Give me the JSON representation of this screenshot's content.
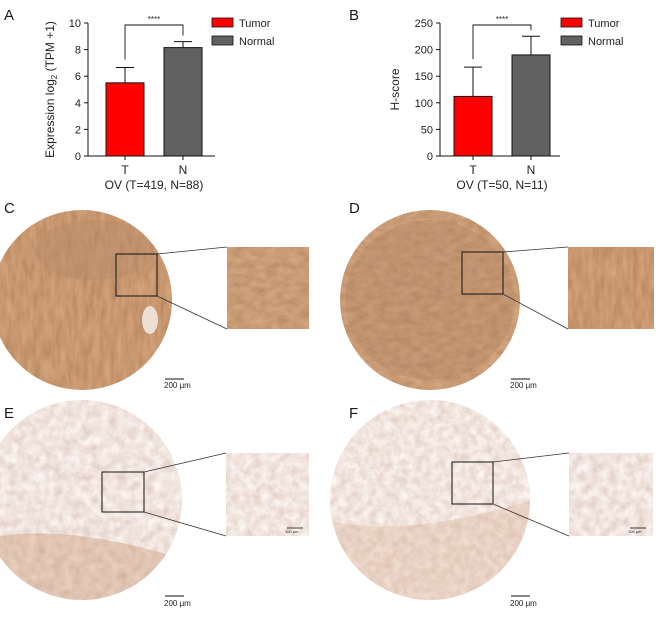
{
  "panels": {
    "a": "A",
    "b": "B",
    "c": "C",
    "d": "D",
    "e": "E",
    "f": "F"
  },
  "chart_data": [
    {
      "type": "bar",
      "categories": [
        "T",
        "N"
      ],
      "values": [
        5.5,
        8.15
      ],
      "errors": [
        1.15,
        0.45
      ],
      "colors": [
        "#ff0000",
        "#616161"
      ],
      "legend": [
        "Tumor",
        "Normal"
      ],
      "legend_position": "top-right",
      "ylabel_pre": "Expression log",
      "ylabel_sub": "2",
      "ylabel_post": " (TPM +1)",
      "xlabel": "OV (T=419, N=88)",
      "ylim": [
        0,
        10
      ],
      "yticks": [
        0,
        2,
        4,
        6,
        8,
        10
      ],
      "significance": "****",
      "grid": false
    },
    {
      "type": "bar",
      "categories": [
        "T",
        "N"
      ],
      "values": [
        112,
        190
      ],
      "errors": [
        55,
        35
      ],
      "colors": [
        "#ff0000",
        "#616161"
      ],
      "legend": [
        "Tumor",
        "Normal"
      ],
      "legend_position": "top-right",
      "ylabel": "H-score",
      "xlabel": "OV (T=50, N=11)",
      "ylim": [
        0,
        250
      ],
      "yticks": [
        0,
        50,
        100,
        150,
        200,
        250
      ],
      "significance": "****",
      "grid": false
    }
  ],
  "micrographs": {
    "scale_large": "200 μm",
    "scale_inset": "100 μm",
    "stain_colors": {
      "strong_bg": "#a0623a",
      "strong_dark": "#6e3a1c",
      "weak_bg": "#ece3dc",
      "weak_brown": "#c58a63",
      "hematoxylin": "#9aaccc"
    }
  }
}
